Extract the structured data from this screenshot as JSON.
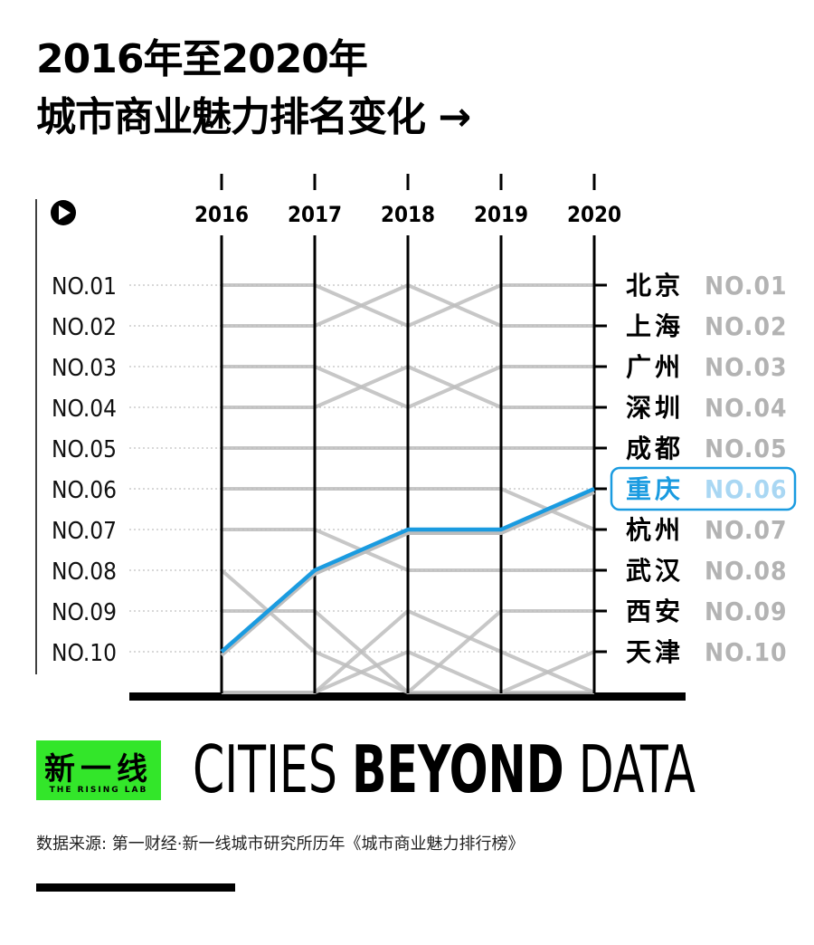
{
  "header": {
    "title_line1": "2016年至2020年",
    "title_line2": "城市商业魅力排名变化",
    "arrow": "→"
  },
  "chart_data": {
    "type": "line",
    "x": [
      "2016",
      "2017",
      "2018",
      "2019",
      "2020"
    ],
    "rank_labels": [
      "NO.01",
      "NO.02",
      "NO.03",
      "NO.04",
      "NO.05",
      "NO.06",
      "NO.07",
      "NO.08",
      "NO.09",
      "NO.10"
    ],
    "ylim": [
      1,
      11
    ],
    "y_inverted": true,
    "highlight_color": "#1a9be0",
    "gray_color": "#bdbdbd",
    "series": [
      {
        "name": "北京",
        "values": [
          1,
          1,
          2,
          1,
          1
        ]
      },
      {
        "name": "上海",
        "values": [
          2,
          2,
          1,
          2,
          2
        ]
      },
      {
        "name": "广州",
        "values": [
          3,
          3,
          4,
          3,
          3
        ]
      },
      {
        "name": "深圳",
        "values": [
          4,
          4,
          3,
          4,
          4
        ]
      },
      {
        "name": "成都",
        "values": [
          5,
          5,
          5,
          5,
          5
        ]
      },
      {
        "name": "重庆",
        "values": [
          10,
          8,
          7,
          7,
          6
        ],
        "highlight": true
      },
      {
        "name": "杭州",
        "values": [
          6,
          6,
          6,
          6,
          7
        ]
      },
      {
        "name": "武汉",
        "values": [
          7,
          7,
          8,
          8,
          8
        ]
      },
      {
        "name": "西安",
        "values": [
          9,
          9,
          11,
          9,
          9
        ]
      },
      {
        "name": "天津",
        "values": [
          11,
          11,
          10,
          11,
          10
        ]
      },
      {
        "name": "",
        "values": [
          8,
          10,
          11,
          11,
          11
        ]
      },
      {
        "name": "",
        "values": [
          11,
          11,
          9,
          10,
          11
        ]
      }
    ],
    "final_ranking": [
      {
        "city": "北京",
        "rank": "NO.01"
      },
      {
        "city": "上海",
        "rank": "NO.02"
      },
      {
        "city": "广州",
        "rank": "NO.03"
      },
      {
        "city": "深圳",
        "rank": "NO.04"
      },
      {
        "city": "成都",
        "rank": "NO.05"
      },
      {
        "city": "重庆",
        "rank": "NO.06",
        "highlight": true
      },
      {
        "city": "杭州",
        "rank": "NO.07"
      },
      {
        "city": "武汉",
        "rank": "NO.08"
      },
      {
        "city": "西安",
        "rank": "NO.09"
      },
      {
        "city": "天津",
        "rank": "NO.10"
      }
    ]
  },
  "brand": {
    "logo_text": "新一线",
    "logo_sub": "THE RISING LAB",
    "logo_color": "#33e62a",
    "tagline_light": "CITIES ",
    "tagline_bold": "BEYOND",
    "tagline_end": " DATA"
  },
  "source": "数据来源: 第一财经·新一线城市研究所历年《城市商业魅力排行榜》"
}
